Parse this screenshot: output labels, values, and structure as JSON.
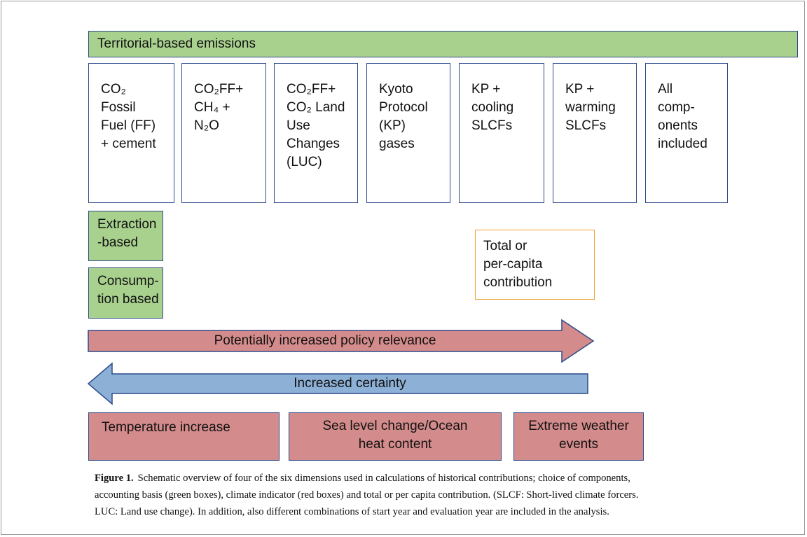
{
  "diagram": {
    "territorial": "Territorial-based emissions",
    "components": [
      [
        "CO₂",
        "Fossil",
        "Fuel (FF)",
        "+ cement"
      ],
      [
        "CO₂FF+",
        "CH₄ +",
        "N₂O"
      ],
      [
        "CO₂FF+",
        "CO₂ Land",
        "Use",
        "Changes",
        "(LUC)"
      ],
      [
        "Kyoto",
        "Protocol",
        "(KP)",
        "gases"
      ],
      [
        "KP +",
        "cooling",
        "SLCFs"
      ],
      [
        "KP +",
        "warming",
        "SLCFs"
      ],
      [
        "All",
        "comp-",
        "onents",
        "included"
      ]
    ],
    "extraction": [
      "Extraction",
      "-based"
    ],
    "consumption": [
      "Consump-",
      "tion based"
    ],
    "contribution": [
      "Total or",
      "per-capita",
      "contribution"
    ],
    "policy_arrow": "Potentially increased policy relevance",
    "certainty_arrow": "Increased certainty",
    "indicators": [
      [
        "Temperature increase"
      ],
      [
        "Sea level change/Ocean",
        "heat content"
      ],
      [
        "Extreme weather",
        "events"
      ]
    ]
  },
  "caption": {
    "label": "Figure 1.",
    "lines": [
      "Schematic overview of four of the six dimensions used in calculations of historical contributions; choice of components,",
      "accounting basis (green boxes), climate indicator (red boxes) and total or per capita contribution. (SLCF: Short-lived climate forcers.",
      "LUC: Land use change). In addition, also different combinations of start year and evaluation year are included in the analysis."
    ]
  }
}
